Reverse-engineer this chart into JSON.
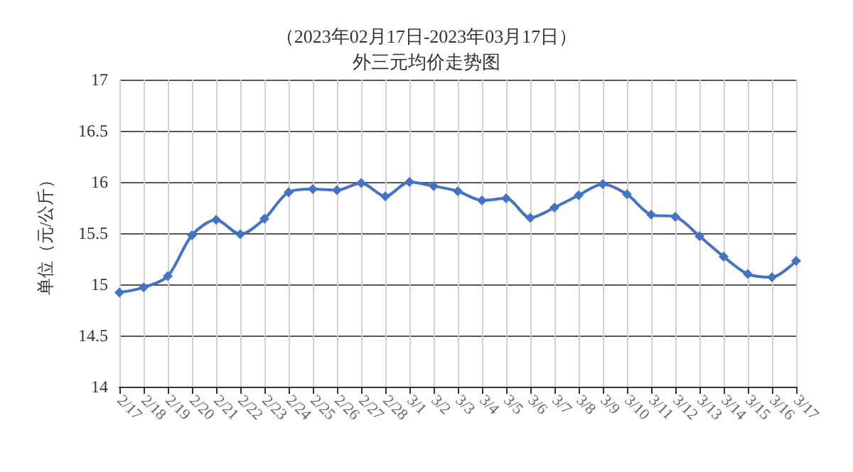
{
  "chart_data": {
    "type": "line",
    "title": "（2023年02月17日-2023年03月17日）",
    "subtitle": "外三元均价走势图",
    "ylabel": "单位（元/公斤）",
    "categories": [
      "2/17",
      "2/18",
      "2/19",
      "2/20",
      "2/21",
      "2/22",
      "2/23",
      "2/24",
      "2/25",
      "2/26",
      "2/27",
      "2/28",
      "3/1",
      "3/2",
      "3/3",
      "3/4",
      "3/5",
      "3/6",
      "3/7",
      "3/8",
      "3/9",
      "3/10",
      "3/11",
      "3/12",
      "3/13",
      "3/14",
      "3/15",
      "3/16",
      "3/17"
    ],
    "series": [
      {
        "color": "#4472c4",
        "values": [
          14.92,
          14.97,
          15.08,
          15.48,
          15.63,
          15.49,
          15.64,
          15.9,
          15.93,
          15.92,
          15.99,
          15.86,
          16.0,
          15.96,
          15.91,
          15.82,
          15.84,
          15.65,
          15.75,
          15.87,
          15.98,
          15.88,
          15.68,
          15.66,
          15.47,
          15.27,
          15.1,
          15.07,
          15.23
        ]
      }
    ],
    "ylim": [
      14,
      17
    ],
    "yticks": [
      14,
      14.5,
      15,
      15.5,
      16,
      16.5,
      17
    ],
    "grid": true,
    "marker": "diamond",
    "line_style": "solid"
  }
}
